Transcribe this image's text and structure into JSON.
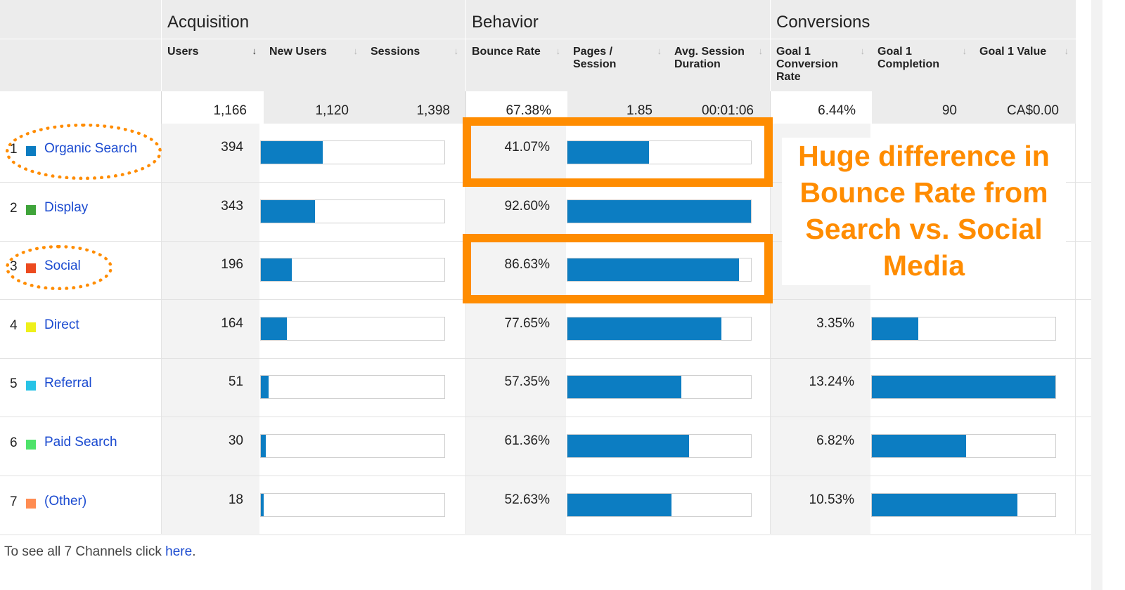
{
  "groups": {
    "acquisition": "Acquisition",
    "behavior": "Behavior",
    "conversions": "Conversions"
  },
  "columns": {
    "users": "Users",
    "new_users": "New Users",
    "sessions": "Sessions",
    "bounce_rate": "Bounce Rate",
    "pages_session": "Pages / Session",
    "avg_session": "Avg. Session Duration",
    "goal_conv": "Goal 1 Conversion Rate",
    "goal_comp": "Goal 1 Completion",
    "goal_value": "Goal 1 Value"
  },
  "totals": {
    "users": "1,166",
    "new_users": "1,120",
    "sessions": "1,398",
    "bounce_rate": "67.38%",
    "pages_session": "1.85",
    "avg_session": "00:01:06",
    "goal_conv": "6.44%",
    "goal_comp": "90",
    "goal_value": "CA$0.00"
  },
  "rows": [
    {
      "rank": "1",
      "channel": "Organic Search",
      "color": "#0b7cc1",
      "users": "394",
      "users_frac": 0.334,
      "bounce": "41.07%",
      "bounce_frac": 0.4435,
      "conv": "",
      "conv_frac": 0
    },
    {
      "rank": "2",
      "channel": "Display",
      "color": "#3fa43a",
      "users": "343",
      "users_frac": 0.291,
      "bounce": "92.60%",
      "bounce_frac": 1.0,
      "conv": "",
      "conv_frac": 0
    },
    {
      "rank": "3",
      "channel": "Social",
      "color": "#ec4a1f",
      "users": "196",
      "users_frac": 0.166,
      "bounce": "86.63%",
      "bounce_frac": 0.9355,
      "conv": "",
      "conv_frac": 0
    },
    {
      "rank": "4",
      "channel": "Direct",
      "color": "#eef01a",
      "users": "164",
      "users_frac": 0.139,
      "bounce": "77.65%",
      "bounce_frac": 0.8386,
      "conv": "3.35%",
      "conv_frac": 0.253
    },
    {
      "rank": "5",
      "channel": "Referral",
      "color": "#28c3e6",
      "users": "51",
      "users_frac": 0.043,
      "bounce": "57.35%",
      "bounce_frac": 0.6193,
      "conv": "13.24%",
      "conv_frac": 1.0
    },
    {
      "rank": "6",
      "channel": "Paid Search",
      "color": "#4ee36a",
      "users": "30",
      "users_frac": 0.025,
      "bounce": "61.36%",
      "bounce_frac": 0.6626,
      "conv": "6.82%",
      "conv_frac": 0.515
    },
    {
      "rank": "7",
      "channel": "(Other)",
      "color": "#ff8c52",
      "users": "18",
      "users_frac": 0.015,
      "bounce": "52.63%",
      "bounce_frac": 0.5684,
      "conv": "10.53%",
      "conv_frac": 0.795
    }
  ],
  "annotation": {
    "callout": "Huge difference in Bounce Rate from Search vs. Social Media",
    "accent": "#ff8c00"
  },
  "footer": {
    "prefix": "To see all 7 Channels click ",
    "link": "here",
    "suffix": "."
  },
  "icons": {
    "sort": "sort-down-icon"
  }
}
